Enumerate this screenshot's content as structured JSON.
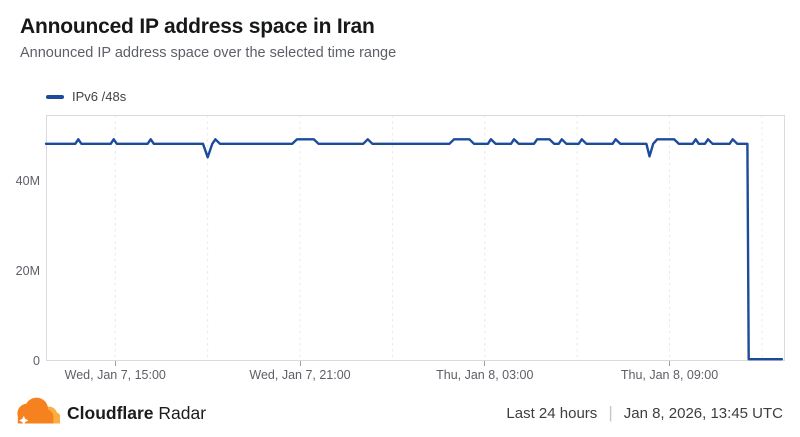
{
  "header": {
    "title": "Announced IP address space in Iran",
    "subtitle": "Announced IP address space over the selected time range"
  },
  "legend": {
    "label": "IPv6 /48s"
  },
  "footer": {
    "brand_bold": "Cloudflare",
    "brand_regular": "Radar",
    "range_label": "Last 24 hours",
    "separator": "|",
    "timestamp": "Jan 8, 2026, 13:45 UTC"
  },
  "colors": {
    "line": "#1d4b9c",
    "axis_border": "#dadbde",
    "gridline": "#e7e8ea",
    "tick": "#9b9ea4",
    "logo_orange": "#F6821F",
    "logo_yellow": "#FBAD41"
  },
  "chart_data": {
    "type": "line",
    "title": "Announced IP address space in Iran",
    "xlabel": "",
    "ylabel": "",
    "legend_entries": [
      "IPv6 /48s"
    ],
    "legend_position": "top-left",
    "grid": "vertical-dashed",
    "units": "millions of announced IPv6 /48s",
    "x_window": "Last 24 hours ending Jan 8, 2026, 13:45 UTC",
    "x_range_hours": [
      0,
      24
    ],
    "ylim_millions": [
      0,
      54.7
    ],
    "yticks": [
      {
        "v": 0,
        "label": "0"
      },
      {
        "v": 20,
        "label": "20M"
      },
      {
        "v": 40,
        "label": "40M"
      }
    ],
    "xticks": [
      {
        "h": 2.25,
        "label": "Wed, Jan 7, 15:00"
      },
      {
        "h": 8.25,
        "label": "Wed, Jan 7, 21:00"
      },
      {
        "h": 14.25,
        "label": "Thu, Jan 8, 03:00"
      },
      {
        "h": 20.25,
        "label": "Thu, Jan 8, 09:00"
      }
    ],
    "minor_gridlines_h": [
      2.25,
      5.25,
      8.25,
      11.25,
      14.25,
      17.25,
      20.25,
      23.25
    ],
    "annotations": [
      {
        "h": 5.25,
        "note": "brief dip to ~45.3M"
      },
      {
        "h": 19.6,
        "note": "brief dip to ~45.5M"
      },
      {
        "h": 22.8,
        "note": "collapse from ~48.3M to ~0.4M"
      }
    ],
    "series": [
      {
        "name": "IPv6 /48s",
        "color": "#1d4b9c",
        "points": [
          [
            0,
            48.3
          ],
          [
            0.95,
            48.3
          ],
          [
            1.05,
            49.3
          ],
          [
            1.15,
            48.3
          ],
          [
            2.1,
            48.3
          ],
          [
            2.2,
            49.3
          ],
          [
            2.3,
            48.3
          ],
          [
            3.3,
            48.3
          ],
          [
            3.4,
            49.3
          ],
          [
            3.5,
            48.3
          ],
          [
            5.1,
            48.3
          ],
          [
            5.25,
            45.3
          ],
          [
            5.4,
            48.3
          ],
          [
            5.5,
            49.3
          ],
          [
            5.65,
            48.3
          ],
          [
            8.0,
            48.3
          ],
          [
            8.15,
            49.3
          ],
          [
            8.7,
            49.3
          ],
          [
            8.85,
            48.3
          ],
          [
            10.3,
            48.3
          ],
          [
            10.45,
            49.3
          ],
          [
            10.6,
            48.3
          ],
          [
            13.1,
            48.3
          ],
          [
            13.25,
            49.3
          ],
          [
            13.75,
            49.3
          ],
          [
            13.9,
            48.3
          ],
          [
            14.35,
            48.3
          ],
          [
            14.45,
            49.3
          ],
          [
            14.6,
            48.3
          ],
          [
            15.1,
            48.3
          ],
          [
            15.2,
            49.3
          ],
          [
            15.35,
            48.3
          ],
          [
            15.85,
            48.3
          ],
          [
            15.95,
            49.3
          ],
          [
            16.35,
            49.3
          ],
          [
            16.5,
            48.3
          ],
          [
            16.65,
            48.3
          ],
          [
            16.75,
            49.3
          ],
          [
            16.9,
            48.3
          ],
          [
            17.3,
            48.3
          ],
          [
            17.4,
            49.3
          ],
          [
            17.55,
            48.3
          ],
          [
            18.4,
            48.3
          ],
          [
            18.5,
            49.3
          ],
          [
            18.65,
            48.3
          ],
          [
            19.5,
            48.3
          ],
          [
            19.6,
            45.5
          ],
          [
            19.72,
            48.3
          ],
          [
            19.85,
            49.3
          ],
          [
            20.4,
            49.3
          ],
          [
            20.55,
            48.3
          ],
          [
            21.0,
            48.3
          ],
          [
            21.1,
            49.3
          ],
          [
            21.2,
            48.3
          ],
          [
            21.4,
            48.3
          ],
          [
            21.5,
            49.3
          ],
          [
            21.65,
            48.3
          ],
          [
            22.2,
            48.3
          ],
          [
            22.3,
            49.3
          ],
          [
            22.45,
            48.3
          ],
          [
            22.78,
            48.3
          ],
          [
            22.82,
            0.4
          ],
          [
            23.9,
            0.4
          ]
        ]
      }
    ]
  }
}
